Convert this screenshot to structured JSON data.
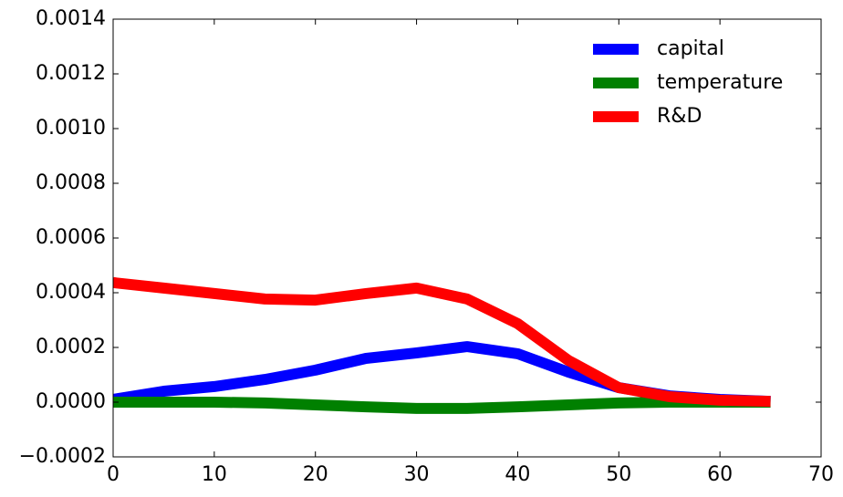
{
  "chart_data": {
    "type": "line",
    "x": [
      0,
      5,
      10,
      15,
      20,
      25,
      30,
      35,
      40,
      45,
      50,
      55,
      60,
      65
    ],
    "series": [
      {
        "name": "capital",
        "color": "#0000ff",
        "values": [
          1e-05,
          4e-05,
          5.7e-05,
          8.3e-05,
          0.000117,
          0.00016,
          0.00018,
          0.000203,
          0.000177,
          0.00011,
          5.3e-05,
          2.3e-05,
          1e-05,
          3e-06
        ]
      },
      {
        "name": "temperature",
        "color": "#008000",
        "values": [
          0,
          0,
          0,
          -3e-06,
          -1e-05,
          -1.7e-05,
          -2.3e-05,
          -2.3e-05,
          -1.7e-05,
          -1e-05,
          -3e-06,
          0,
          0,
          0
        ]
      },
      {
        "name": "R&D",
        "color": "#ff0000",
        "values": [
          0.000437,
          0.000417,
          0.000397,
          0.000377,
          0.000373,
          0.000397,
          0.000417,
          0.000377,
          0.000287,
          0.000153,
          5.3e-05,
          2e-05,
          7e-06,
          3e-06
        ]
      }
    ],
    "xlim": [
      0,
      70
    ],
    "xticks": [
      0,
      10,
      20,
      30,
      40,
      50,
      60,
      70
    ],
    "ylim": [
      -0.0002,
      0.0014
    ],
    "yticks": [
      {
        "value": -0.0002,
        "label": "−0.0002"
      },
      {
        "value": 0,
        "label": "0.0000"
      },
      0.0002,
      0.0004,
      0.0006,
      0.0008,
      {
        "value": 0.001,
        "label": "0.0010"
      },
      0.0012,
      0.0014
    ],
    "legend": "upper right"
  }
}
